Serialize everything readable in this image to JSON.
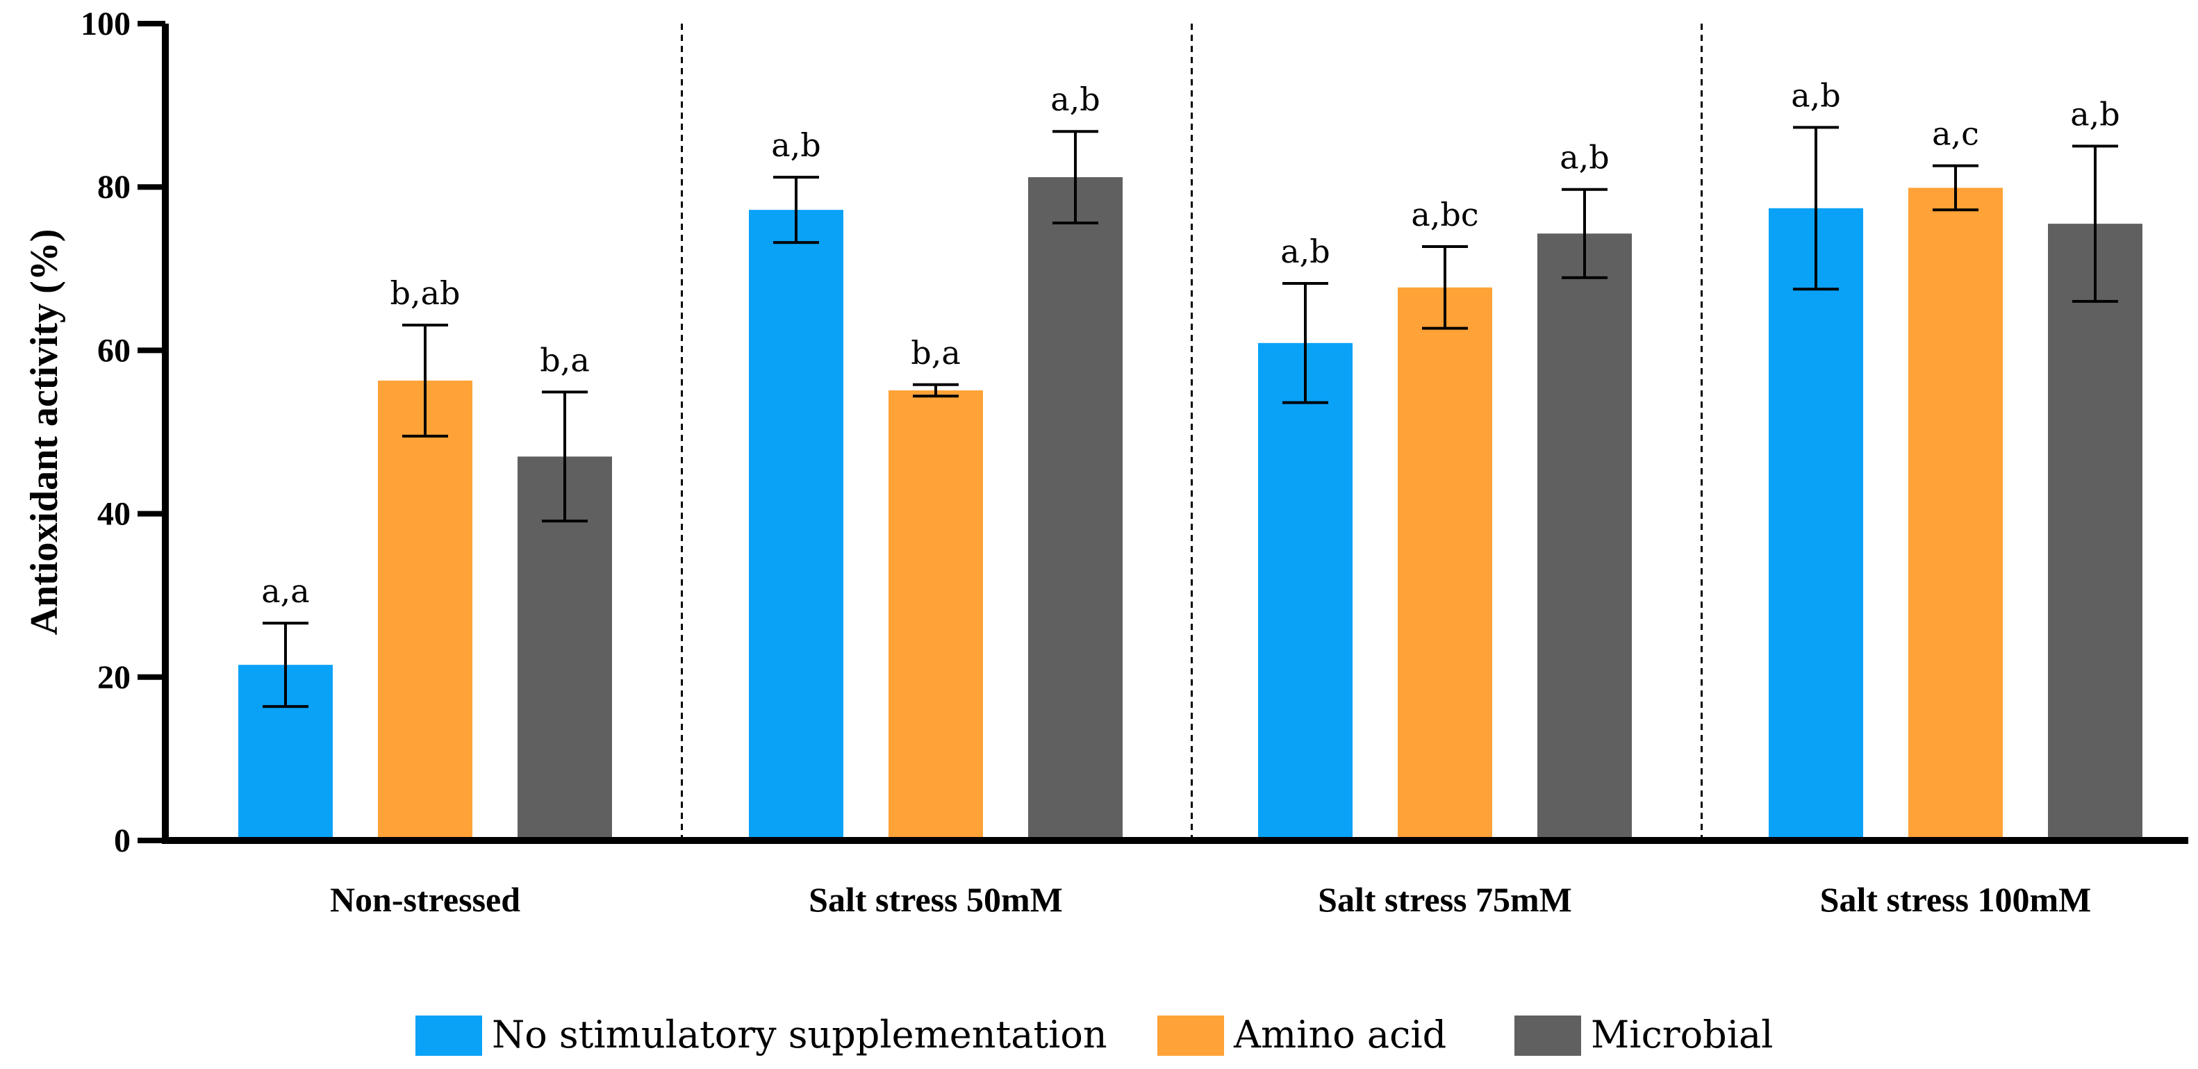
{
  "chart_data": {
    "type": "bar",
    "title": "",
    "ylabel": "Antioxidant activity (%)",
    "xlabel": "",
    "ylim": [
      0,
      100
    ],
    "yticks": [
      0,
      20,
      40,
      60,
      80,
      100
    ],
    "categories": [
      "Non-stressed",
      "Salt stress 50mM",
      "Salt stress 75mM",
      "Salt stress 100mM"
    ],
    "series": [
      {
        "name": "No stimulatory supplementation",
        "color": "#0aa2f7",
        "values": [
          21.5,
          77.2,
          60.9,
          77.4
        ],
        "errors": [
          5.1,
          4.0,
          7.3,
          9.9
        ],
        "annotations": [
          "a,a",
          "a,b",
          "a,b",
          "a,b"
        ]
      },
      {
        "name": "Amino acid",
        "color": "#ffa237",
        "values": [
          56.3,
          55.1,
          67.7,
          79.9
        ],
        "errors": [
          6.8,
          0.7,
          5.0,
          2.7
        ],
        "annotations": [
          "b,ab",
          "b,a",
          "a,bc",
          "a,c"
        ]
      },
      {
        "name": "Microbial",
        "color": "#606060",
        "values": [
          47.0,
          81.2,
          74.3,
          75.5
        ],
        "errors": [
          7.9,
          5.6,
          5.4,
          9.5
        ],
        "annotations": [
          "b,a",
          "a,b",
          "a,b",
          "a,b"
        ]
      }
    ],
    "group_separators": "dashed",
    "grid": false,
    "legend_position": "bottom-center"
  }
}
